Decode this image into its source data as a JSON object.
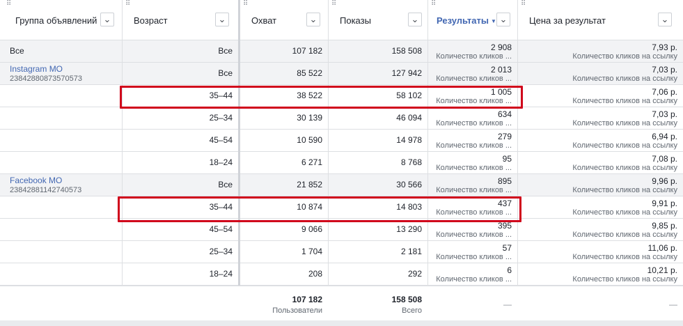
{
  "columns": {
    "adset": "Группа объявлений",
    "age": "Возраст",
    "reach": "Охват",
    "impressions": "Показы",
    "results": "Результаты",
    "cost": "Цена за результат"
  },
  "icons": {
    "dropdown": "chevron-down-icon",
    "sort": "sort-desc-icon",
    "grip": "drag-handle-icon"
  },
  "total_row": {
    "adset": "Все",
    "age": "Все",
    "reach": "107 182",
    "impressions": "158 508",
    "result": "2 908",
    "result_type": "Количество кликов ...",
    "cost": "7,93 р.",
    "cost_type": "Количество кликов на ссылку"
  },
  "groups": [
    {
      "name": "Instagram MO",
      "id": "23842880873570573",
      "rows": [
        {
          "age": "Все",
          "reach": "85 522",
          "impressions": "127 942",
          "result": "2 013",
          "result_type": "Количество кликов ...",
          "cost": "7,03 р.",
          "cost_type": "Количество кликов на ссылку"
        },
        {
          "age": "35–44",
          "reach": "38 522",
          "impressions": "58 102",
          "result": "1 005",
          "result_type": "Количество кликов ...",
          "cost": "7,06 р.",
          "cost_type": "Количество кликов на ссылку"
        },
        {
          "age": "25–34",
          "reach": "30 139",
          "impressions": "46 094",
          "result": "634",
          "result_type": "Количество кликов ...",
          "cost": "7,03 р.",
          "cost_type": "Количество кликов на ссылку"
        },
        {
          "age": "45–54",
          "reach": "10 590",
          "impressions": "14 978",
          "result": "279",
          "result_type": "Количество кликов ...",
          "cost": "6,94 р.",
          "cost_type": "Количество кликов на ссылку"
        },
        {
          "age": "18–24",
          "reach": "6 271",
          "impressions": "8 768",
          "result": "95",
          "result_type": "Количество кликов ...",
          "cost": "7,08 р.",
          "cost_type": "Количество кликов на ссылку"
        }
      ]
    },
    {
      "name": "Facebook MO",
      "id": "23842881142740573",
      "rows": [
        {
          "age": "Все",
          "reach": "21 852",
          "impressions": "30 566",
          "result": "895",
          "result_type": "Количество кликов ...",
          "cost": "9,96 р.",
          "cost_type": "Количество кликов на ссылку"
        },
        {
          "age": "35–44",
          "reach": "10 874",
          "impressions": "14 803",
          "result": "437",
          "result_type": "Количество кликов ...",
          "cost": "9,91 р.",
          "cost_type": "Количество кликов на ссылку"
        },
        {
          "age": "45–54",
          "reach": "9 066",
          "impressions": "13 290",
          "result": "395",
          "result_type": "Количество кликов ...",
          "cost": "9,85 р.",
          "cost_type": "Количество кликов на ссылку"
        },
        {
          "age": "25–34",
          "reach": "1 704",
          "impressions": "2 181",
          "result": "57",
          "result_type": "Количество кликов ...",
          "cost": "11,06 р.",
          "cost_type": "Количество кликов на ссылку"
        },
        {
          "age": "18–24",
          "reach": "208",
          "impressions": "292",
          "result": "6",
          "result_type": "Количество кликов ...",
          "cost": "10,21 р.",
          "cost_type": "Количество кликов на ссылку"
        }
      ]
    }
  ],
  "footer": {
    "reach": "107 182",
    "reach_sub": "Пользователи",
    "impressions": "158 508",
    "impressions_sub": "Всего",
    "results": "—",
    "cost": "—"
  },
  "highlight_color": "#d0021b",
  "accent_color": "#4267b2"
}
